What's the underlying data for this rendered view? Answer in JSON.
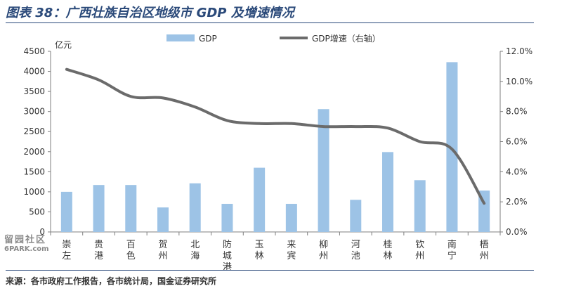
{
  "figure": {
    "title": "图表 38：广西壮族自治区地级市 GDP 及增速情况",
    "source": "来源：各市政府工作报告，各市统计局，国金证券研究所"
  },
  "watermark": {
    "cn": "留园社区",
    "en": "6PARK.com"
  },
  "colors": {
    "bar": "#9dc3e6",
    "line": "#6b6b6b",
    "axis": "#7f7f7f",
    "title": "#2b4a7a"
  },
  "chart_data": {
    "type": "bar",
    "title": "",
    "categories": [
      "崇左",
      "贵港",
      "百色",
      "贺州",
      "北海",
      "防城港",
      "玉林",
      "来宾",
      "柳州",
      "河池",
      "桂林",
      "钦州",
      "南宁",
      "梧州"
    ],
    "series": [
      {
        "name": "GDP",
        "type": "bar",
        "axis": "left",
        "values": [
          1000,
          1170,
          1170,
          610,
          1210,
          700,
          1600,
          700,
          3060,
          800,
          1990,
          1290,
          4230,
          1030
        ]
      },
      {
        "name": "GDP增速（右轴）",
        "type": "line",
        "axis": "right",
        "values": [
          10.8,
          10.1,
          9.0,
          8.9,
          8.3,
          7.4,
          7.2,
          7.2,
          7.0,
          7.0,
          6.9,
          6.0,
          5.5,
          1.9
        ]
      }
    ],
    "ylabel_left": "亿元",
    "ylim_left": [
      0,
      4500
    ],
    "yticks_left": [
      "0",
      "500",
      "1000",
      "1500",
      "2000",
      "2500",
      "3000",
      "3500",
      "4000",
      "4500"
    ],
    "ylim_right": [
      0,
      12
    ],
    "yticks_right": [
      "0.0%",
      "2.0%",
      "4.0%",
      "6.0%",
      "8.0%",
      "10.0%",
      "12.0%"
    ],
    "grid": false,
    "legend": "top-center"
  }
}
